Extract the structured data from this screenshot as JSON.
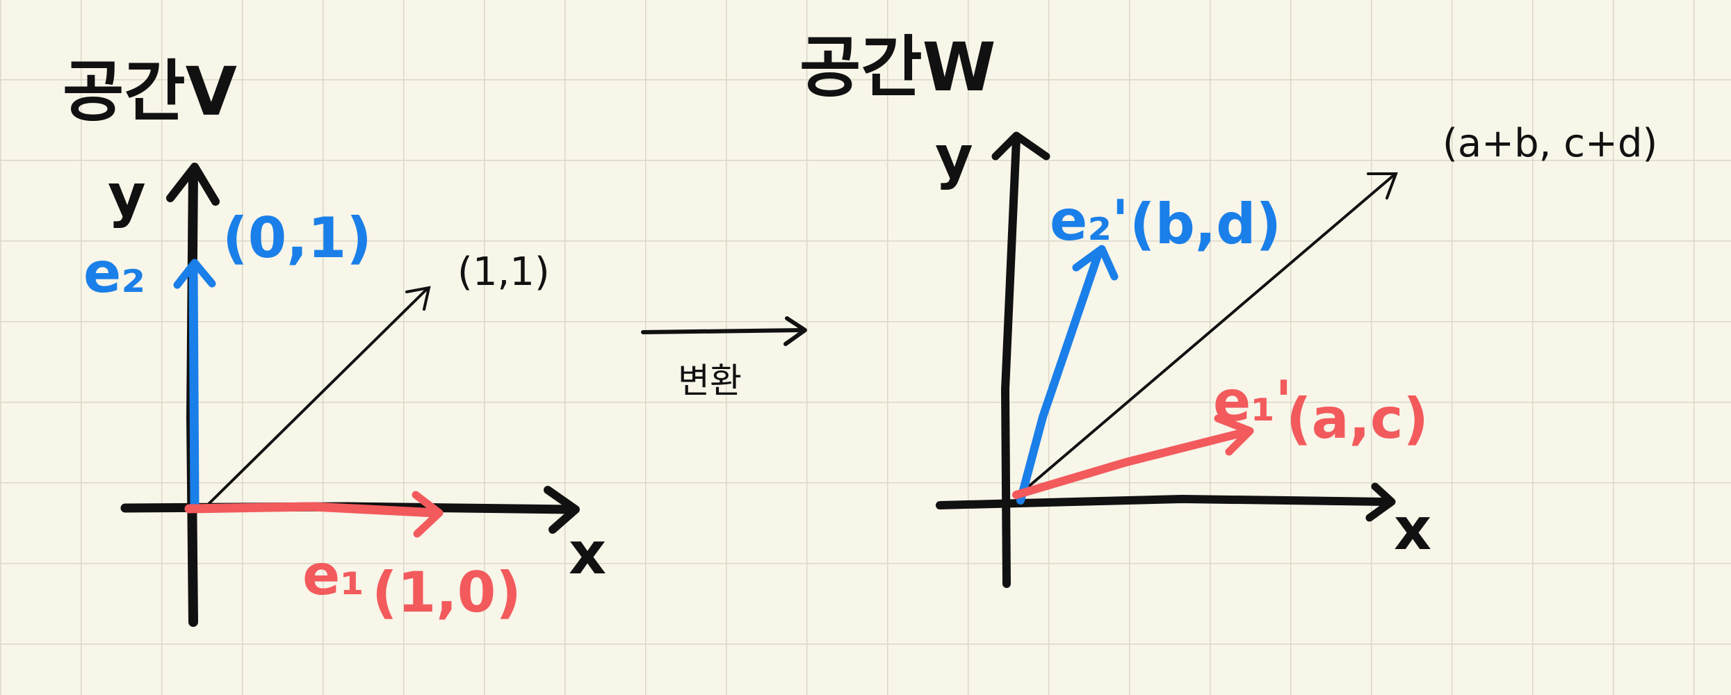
{
  "left": {
    "title": "공간V",
    "y_label": "y",
    "x_label": "x",
    "e2_label": "e₂",
    "e2_coord": "(0,1)",
    "e1_label": "e₁",
    "e1_coord": "(1,0)",
    "diag_coord": "(1,1)"
  },
  "transform_label": "변환",
  "right": {
    "title": "공간W",
    "y_label": "y",
    "x_label": "x",
    "e2_label": "e₂'",
    "e2_coord": "(b,d)",
    "e1_label": "e₁'",
    "e1_coord": "(a,c)",
    "diag_coord": "(a+b, c+d)"
  },
  "colors": {
    "background": "#f8f5e9",
    "grid": "#dcd8c6",
    "blue": "#1a7fe8",
    "red": "#f25a5c",
    "ink": "#111111"
  }
}
